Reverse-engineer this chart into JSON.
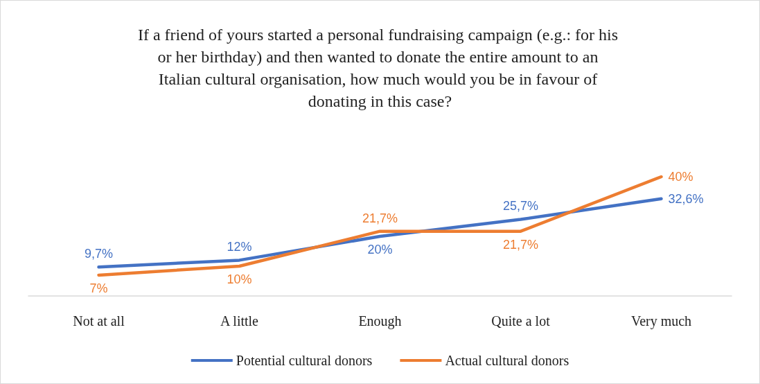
{
  "chart_data": {
    "type": "line",
    "title": "If a friend of yours started a personal fundraising campaign (e.g.: for his or her birthday) and then wanted to donate the entire amount to an Italian cultural organisation, how much would you be in favour of donating in this case?",
    "categories": [
      "Not at all",
      "A little",
      "Enough",
      "Quite a lot",
      "Very much"
    ],
    "series": [
      {
        "name": "Potential cultural donors",
        "color": "#4472c4",
        "values": [
          9.7,
          12,
          20,
          25.7,
          32.6
        ],
        "value_labels": [
          "9,7%",
          "12%",
          "20%",
          "25,7%",
          "32,6%"
        ]
      },
      {
        "name": "Actual cultural donors",
        "color": "#ed7d31",
        "values": [
          7,
          10,
          21.7,
          21.7,
          40
        ],
        "value_labels": [
          "7%",
          "10%",
          "21,7%",
          "21,7%",
          "40%"
        ]
      }
    ],
    "legend": "bottom",
    "marker": "none",
    "line_style": "solid"
  }
}
